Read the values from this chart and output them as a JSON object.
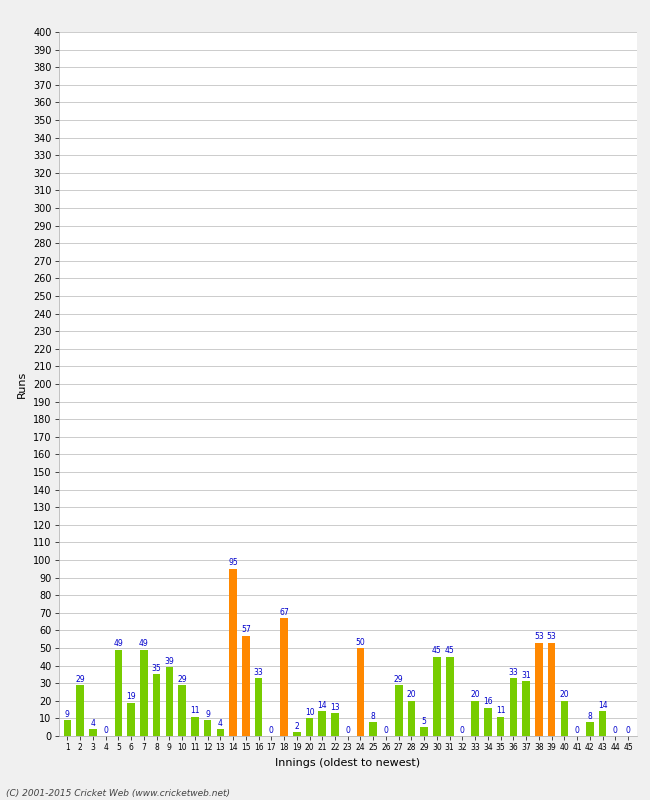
{
  "innings": [
    1,
    2,
    3,
    4,
    5,
    6,
    7,
    8,
    9,
    10,
    11,
    12,
    13,
    14,
    15,
    16,
    17,
    18,
    19,
    20,
    21,
    22,
    23,
    24,
    25,
    26,
    27,
    28,
    29,
    30,
    31,
    32,
    33,
    34,
    35,
    36,
    37,
    38,
    39,
    40,
    41,
    42,
    43,
    44,
    45
  ],
  "values": [
    9,
    29,
    4,
    0,
    49,
    19,
    49,
    35,
    39,
    29,
    11,
    9,
    4,
    95,
    57,
    33,
    0,
    67,
    2,
    10,
    14,
    13,
    0,
    50,
    8,
    0,
    29,
    20,
    5,
    45,
    45,
    0,
    20,
    16,
    11,
    33,
    31,
    53,
    53,
    20,
    0,
    8,
    14,
    0,
    0
  ],
  "colors": [
    "#77cc00",
    "#77cc00",
    "#77cc00",
    "#77cc00",
    "#77cc00",
    "#77cc00",
    "#77cc00",
    "#77cc00",
    "#77cc00",
    "#77cc00",
    "#77cc00",
    "#77cc00",
    "#77cc00",
    "#ff8800",
    "#ff8800",
    "#77cc00",
    "#77cc00",
    "#ff8800",
    "#77cc00",
    "#77cc00",
    "#77cc00",
    "#77cc00",
    "#77cc00",
    "#ff8800",
    "#77cc00",
    "#77cc00",
    "#77cc00",
    "#77cc00",
    "#77cc00",
    "#77cc00",
    "#77cc00",
    "#77cc00",
    "#77cc00",
    "#77cc00",
    "#77cc00",
    "#77cc00",
    "#77cc00",
    "#ff8800",
    "#ff8800",
    "#77cc00",
    "#77cc00",
    "#77cc00",
    "#77cc00",
    "#77cc00",
    "#77cc00"
  ],
  "xlabel": "Innings (oldest to newest)",
  "ylabel": "Runs",
  "ylim": [
    0,
    400
  ],
  "yticks": [
    0,
    10,
    20,
    30,
    40,
    50,
    60,
    70,
    80,
    90,
    100,
    110,
    120,
    130,
    140,
    150,
    160,
    170,
    180,
    190,
    200,
    210,
    220,
    230,
    240,
    250,
    260,
    270,
    280,
    290,
    300,
    310,
    320,
    330,
    340,
    350,
    360,
    370,
    380,
    390,
    400
  ],
  "bg_color": "#f0f0f0",
  "plot_bg_color": "#ffffff",
  "grid_color": "#cccccc",
  "label_color": "#0000cc",
  "footer": "(C) 2001-2015 Cricket Web (www.cricketweb.net)"
}
